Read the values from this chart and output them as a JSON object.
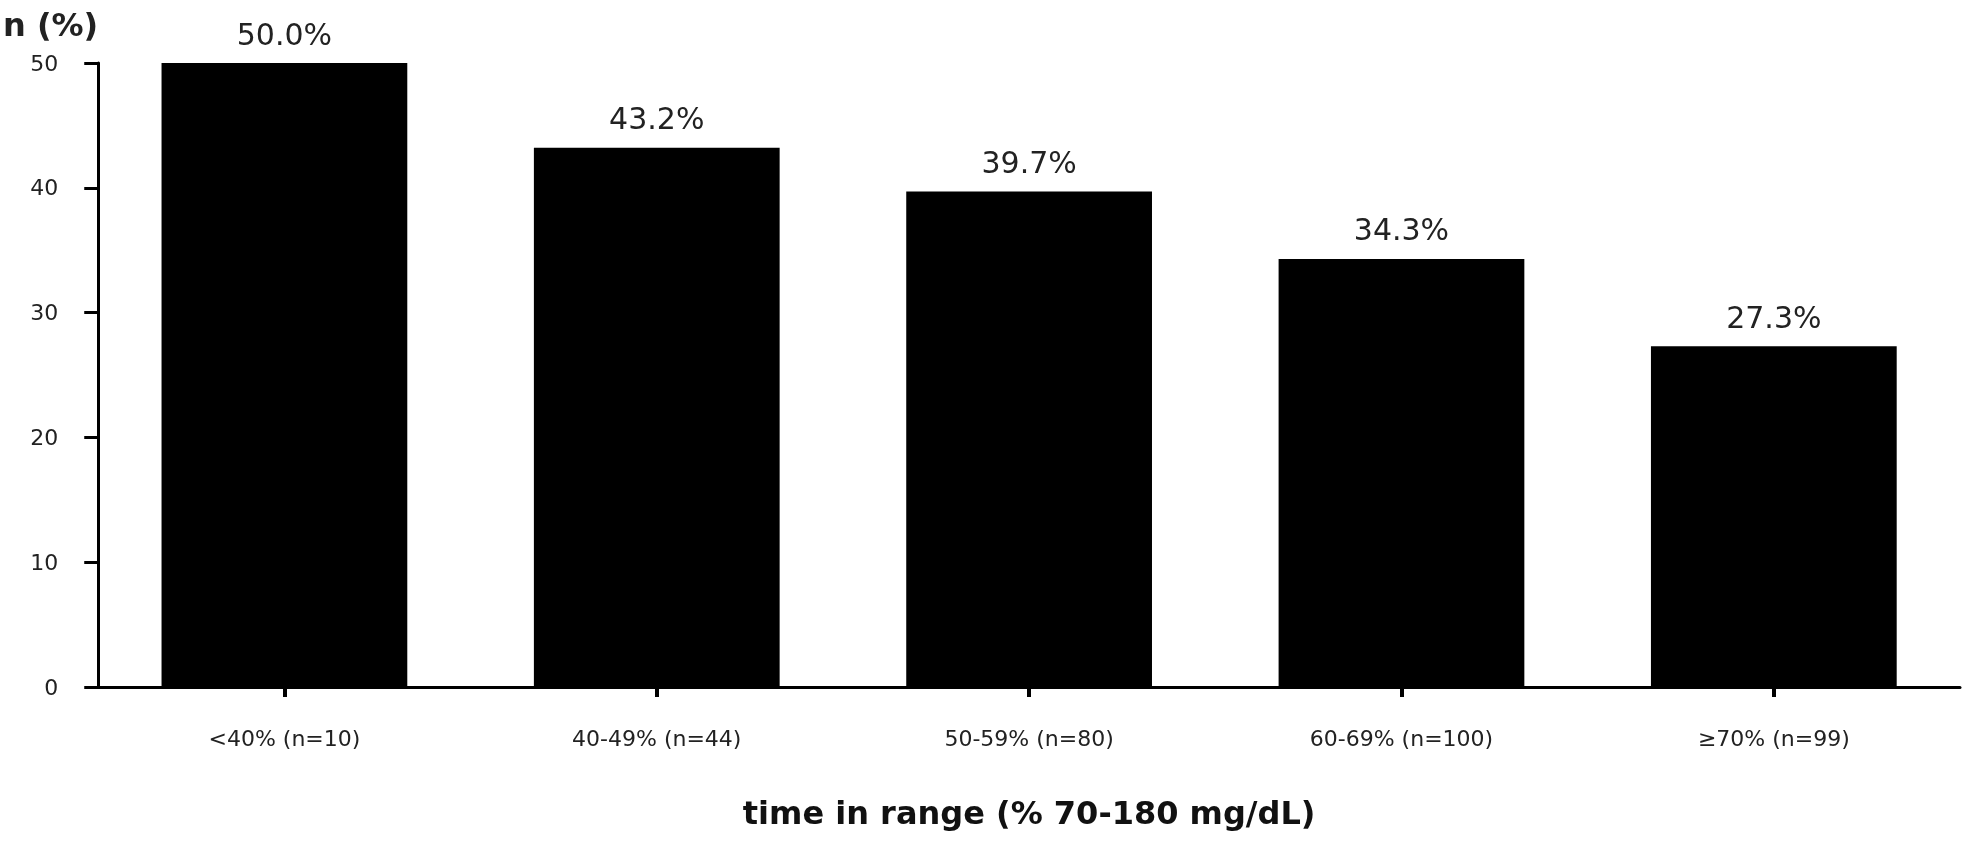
{
  "chart_data": {
    "type": "bar",
    "ylabel": "n (%)",
    "xlabel": "time in range (% 70-180 mg/dL)",
    "categories": [
      "<40% (n=10)",
      "40-49% (n=44)",
      "50-59% (n=80)",
      "60-69% (n=100)",
      "≥70% (n=99)"
    ],
    "values": [
      50.0,
      43.2,
      39.7,
      34.3,
      27.3
    ],
    "value_labels": [
      "50.0%",
      "43.2%",
      "39.7%",
      "34.3%",
      "27.3%"
    ],
    "color": "#000000",
    "ylim": [
      0,
      50
    ],
    "yticks": [
      0,
      10,
      20,
      30,
      40,
      50
    ],
    "grid": false
  }
}
